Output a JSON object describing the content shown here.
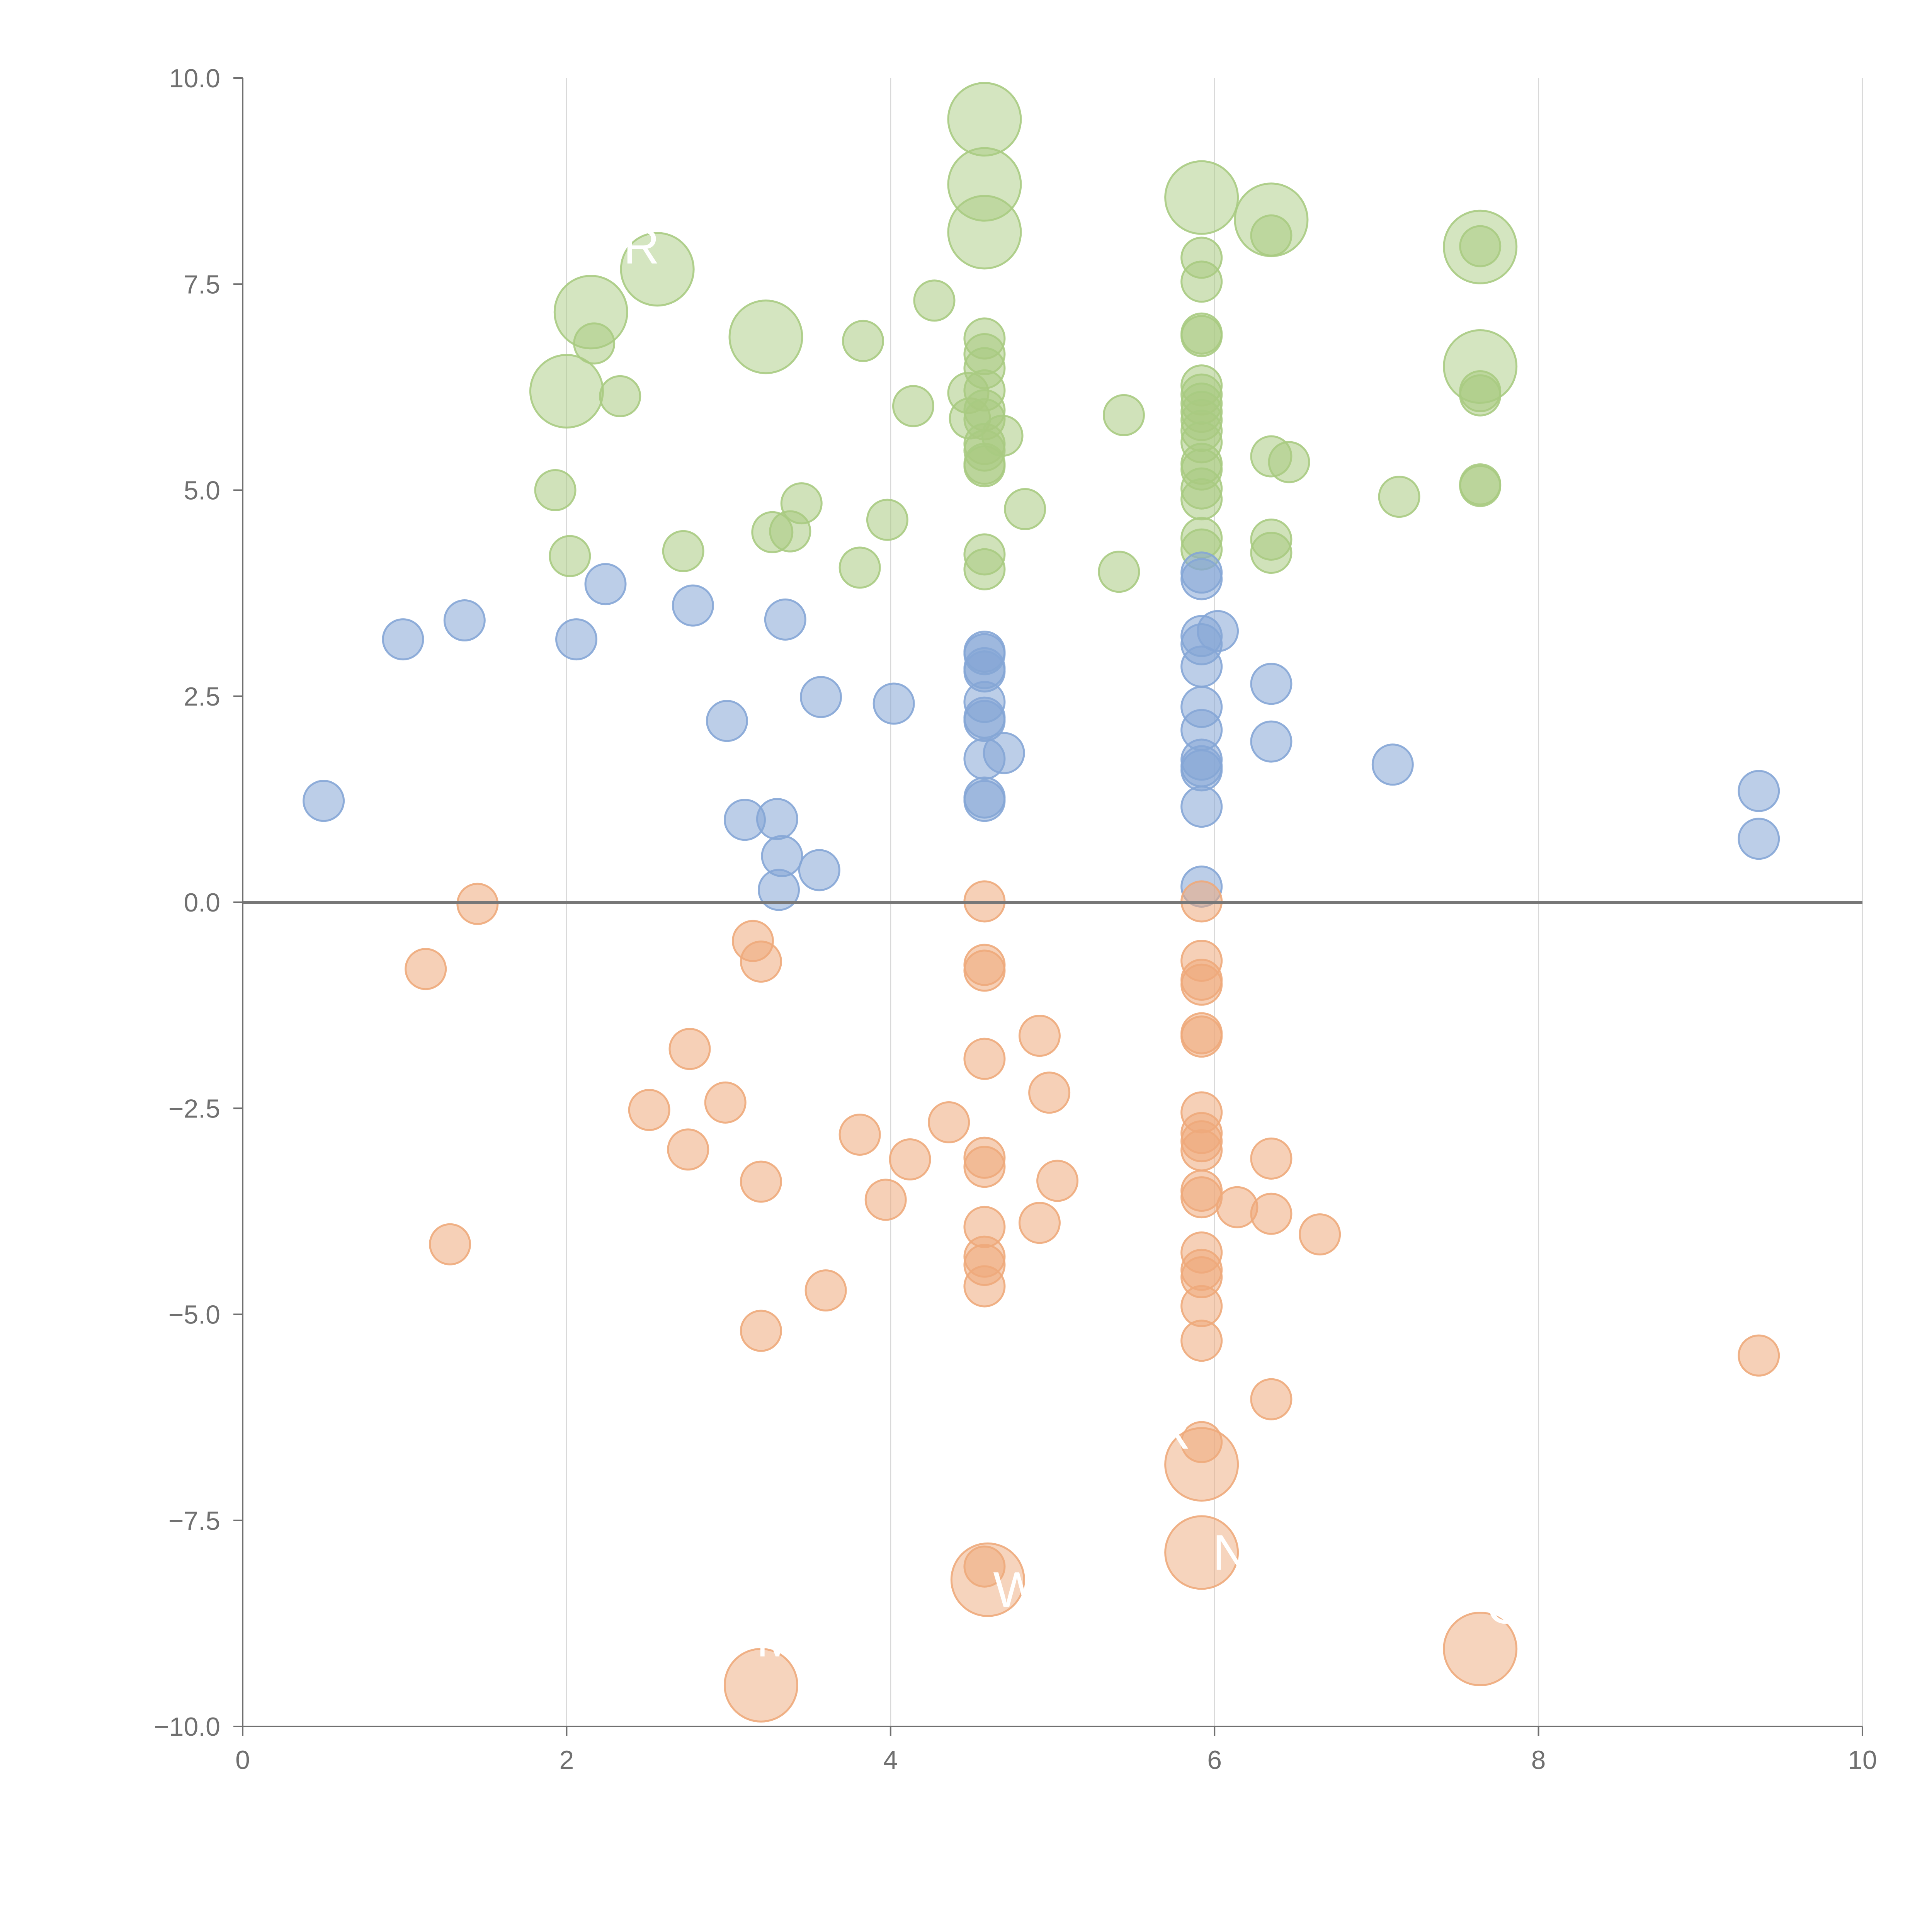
{
  "chart_data": {
    "type": "scatter",
    "title": "",
    "xlabel": "",
    "ylabel": "",
    "xlim": [
      0,
      10
    ],
    "ylim": [
      -10,
      10
    ],
    "grid": "vertical",
    "legend": "none",
    "x_ticks": [
      0,
      2,
      4,
      6,
      8,
      10
    ],
    "x_tick_labels": [
      "0",
      "2",
      "4",
      "6",
      "8",
      "10"
    ],
    "y_ticks": [
      -10,
      -7.5,
      -5,
      -2.5,
      0,
      2.5,
      5,
      7.5,
      10
    ],
    "y_tick_labels": [
      "−10.0",
      "−7.5",
      "−5.0",
      "−2.5",
      "0.0",
      "2.5",
      "5.0",
      "7.5",
      "10.0"
    ],
    "baseline_y": 0,
    "colors": {
      "green": "#a9cb82",
      "blue": "#85a6d6",
      "orange": "#eeaa7b",
      "axis": "#707070",
      "grid": "#d9d9d9",
      "baseline": "#777777",
      "label": "#ffffff"
    },
    "series": [
      {
        "name": "green",
        "color_key": "green",
        "points": [
          [
            1.93,
            5.0
          ],
          [
            2.02,
            4.2
          ],
          [
            2.17,
            6.78
          ],
          [
            2.33,
            6.14
          ],
          [
            2.72,
            4.26
          ],
          [
            3.27,
            4.49
          ],
          [
            3.38,
            4.5
          ],
          [
            3.45,
            4.84
          ],
          [
            3.81,
            4.06
          ],
          [
            3.83,
            6.81
          ],
          [
            3.98,
            4.64
          ],
          [
            4.14,
            6.02
          ],
          [
            4.27,
            7.3
          ],
          [
            4.48,
            6.18
          ],
          [
            4.49,
            5.87
          ],
          [
            4.58,
            6.84
          ],
          [
            4.58,
            6.65
          ],
          [
            4.58,
            6.48
          ],
          [
            4.58,
            6.21
          ],
          [
            4.58,
            5.97
          ],
          [
            4.58,
            5.86
          ],
          [
            4.58,
            5.56
          ],
          [
            4.58,
            5.48
          ],
          [
            4.58,
            5.32
          ],
          [
            4.58,
            5.29
          ],
          [
            4.58,
            4.22
          ],
          [
            4.58,
            4.04
          ],
          [
            4.69,
            5.66
          ],
          [
            4.83,
            4.77
          ],
          [
            5.41,
            4.01
          ],
          [
            5.44,
            5.91
          ],
          [
            5.92,
            7.82
          ],
          [
            5.92,
            7.53
          ],
          [
            5.92,
            6.9
          ],
          [
            5.92,
            6.87
          ],
          [
            5.92,
            6.27
          ],
          [
            5.92,
            6.16
          ],
          [
            5.92,
            6.05
          ],
          [
            5.92,
            5.95
          ],
          [
            5.92,
            5.85
          ],
          [
            5.92,
            5.72
          ],
          [
            5.92,
            5.58
          ],
          [
            5.92,
            5.32
          ],
          [
            5.92,
            5.25
          ],
          [
            5.92,
            5.02
          ],
          [
            5.92,
            4.89
          ],
          [
            5.92,
            4.42
          ],
          [
            5.92,
            4.28
          ],
          [
            6.35,
            8.09
          ],
          [
            6.35,
            5.41
          ],
          [
            6.35,
            4.4
          ],
          [
            6.35,
            4.24
          ],
          [
            6.46,
            5.34
          ],
          [
            7.14,
            4.92
          ],
          [
            7.64,
            7.96
          ],
          [
            7.64,
            6.2
          ],
          [
            7.64,
            6.15
          ],
          [
            7.64,
            5.07
          ],
          [
            7.64,
            5.05
          ]
        ],
        "big_points": [
          [
            4.58,
            9.5
          ],
          [
            4.58,
            8.71
          ],
          [
            4.58,
            8.13
          ],
          [
            5.92,
            8.55
          ],
          [
            6.35,
            8.28
          ],
          [
            7.64,
            7.95
          ],
          [
            7.64,
            6.5
          ],
          [
            2.56,
            7.68
          ],
          [
            2.15,
            7.16
          ],
          [
            3.23,
            6.86
          ],
          [
            2.0,
            6.2
          ]
        ]
      },
      {
        "name": "blue",
        "color_key": "blue",
        "points": [
          [
            0.5,
            1.23
          ],
          [
            0.99,
            3.19
          ],
          [
            1.37,
            3.42
          ],
          [
            2.06,
            3.19
          ],
          [
            2.24,
            3.86
          ],
          [
            2.78,
            3.6
          ],
          [
            2.99,
            2.2
          ],
          [
            3.1,
            1.0
          ],
          [
            3.3,
            1.01
          ],
          [
            3.33,
            0.56
          ],
          [
            3.31,
            0.15
          ],
          [
            3.35,
            3.43
          ],
          [
            3.56,
            0.39
          ],
          [
            3.57,
            2.49
          ],
          [
            4.02,
            2.41
          ],
          [
            4.58,
            3.04
          ],
          [
            4.58,
            3.01
          ],
          [
            4.58,
            2.84
          ],
          [
            4.58,
            2.8
          ],
          [
            4.58,
            2.43
          ],
          [
            4.58,
            2.24
          ],
          [
            4.58,
            2.2
          ],
          [
            4.58,
            1.74
          ],
          [
            4.58,
            1.27
          ],
          [
            4.58,
            1.23
          ],
          [
            4.7,
            1.81
          ],
          [
            5.92,
            4.0
          ],
          [
            5.92,
            3.92
          ],
          [
            5.92,
            3.23
          ],
          [
            5.92,
            3.13
          ],
          [
            5.92,
            2.86
          ],
          [
            5.92,
            2.37
          ],
          [
            5.92,
            2.09
          ],
          [
            5.92,
            1.73
          ],
          [
            5.92,
            1.65
          ],
          [
            5.92,
            1.6
          ],
          [
            5.92,
            1.16
          ],
          [
            5.92,
            0.19
          ],
          [
            6.02,
            3.29
          ],
          [
            6.35,
            2.65
          ],
          [
            6.35,
            1.95
          ],
          [
            7.1,
            1.67
          ],
          [
            9.36,
            1.35
          ],
          [
            9.36,
            0.77
          ]
        ],
        "big_points": []
      },
      {
        "name": "orange",
        "color_key": "orange",
        "points": [
          [
            1.13,
            -0.81
          ],
          [
            1.45,
            -0.02
          ],
          [
            1.28,
            -4.15
          ],
          [
            2.51,
            -2.52
          ],
          [
            2.76,
            -1.78
          ],
          [
            2.75,
            -3.0
          ],
          [
            2.98,
            -2.43
          ],
          [
            3.15,
            -0.47
          ],
          [
            3.2,
            -0.72
          ],
          [
            3.2,
            -3.39
          ],
          [
            3.2,
            -5.2
          ],
          [
            3.6,
            -4.71
          ],
          [
            3.81,
            -2.82
          ],
          [
            3.97,
            -3.61
          ],
          [
            4.12,
            -3.12
          ],
          [
            4.36,
            -2.67
          ],
          [
            4.58,
            0.01
          ],
          [
            4.58,
            -0.76
          ],
          [
            4.58,
            -0.83
          ],
          [
            4.58,
            -1.9
          ],
          [
            4.58,
            -3.1
          ],
          [
            4.58,
            -3.21
          ],
          [
            4.58,
            -3.94
          ],
          [
            4.58,
            -4.3
          ],
          [
            4.58,
            -4.4
          ],
          [
            4.58,
            -4.66
          ],
          [
            4.58,
            -8.06
          ],
          [
            4.92,
            -1.62
          ],
          [
            4.92,
            -3.89
          ],
          [
            4.98,
            -2.31
          ],
          [
            5.03,
            -3.38
          ],
          [
            5.92,
            0.01
          ],
          [
            5.92,
            -0.71
          ],
          [
            5.92,
            -0.94
          ],
          [
            5.92,
            -1.0
          ],
          [
            5.92,
            -1.59
          ],
          [
            5.92,
            -1.63
          ],
          [
            5.92,
            -2.55
          ],
          [
            5.92,
            -2.8
          ],
          [
            5.92,
            -2.9
          ],
          [
            5.92,
            -3.01
          ],
          [
            5.92,
            -3.5
          ],
          [
            5.92,
            -3.58
          ],
          [
            5.92,
            -4.25
          ],
          [
            5.92,
            -4.46
          ],
          [
            5.92,
            -4.55
          ],
          [
            5.92,
            -4.9
          ],
          [
            5.92,
            -5.32
          ],
          [
            5.92,
            -6.55
          ],
          [
            6.14,
            -3.7
          ],
          [
            6.35,
            -3.11
          ],
          [
            6.35,
            -3.78
          ],
          [
            6.35,
            -6.03
          ],
          [
            6.65,
            -4.03
          ],
          [
            9.36,
            -5.5
          ]
        ],
        "big_points": [
          [
            5.92,
            -6.82
          ],
          [
            5.92,
            -7.89
          ],
          [
            4.6,
            -8.22
          ],
          [
            7.64,
            -9.06
          ],
          [
            3.2,
            -9.5
          ]
        ]
      }
    ],
    "bubble_labels": [
      {
        "text": "CR",
        "x": 2.35,
        "y": 7.75
      },
      {
        "text": "R",
        "x": 5.74,
        "y": -6.63
      },
      {
        "text": "N",
        "x": 6.1,
        "y": -8.1
      },
      {
        "text": "W",
        "x": 4.78,
        "y": -8.55
      },
      {
        "text": "O",
        "x": 7.8,
        "y": -8.75
      },
      {
        "text": "M",
        "x": 3.3,
        "y": -9.15
      }
    ]
  }
}
